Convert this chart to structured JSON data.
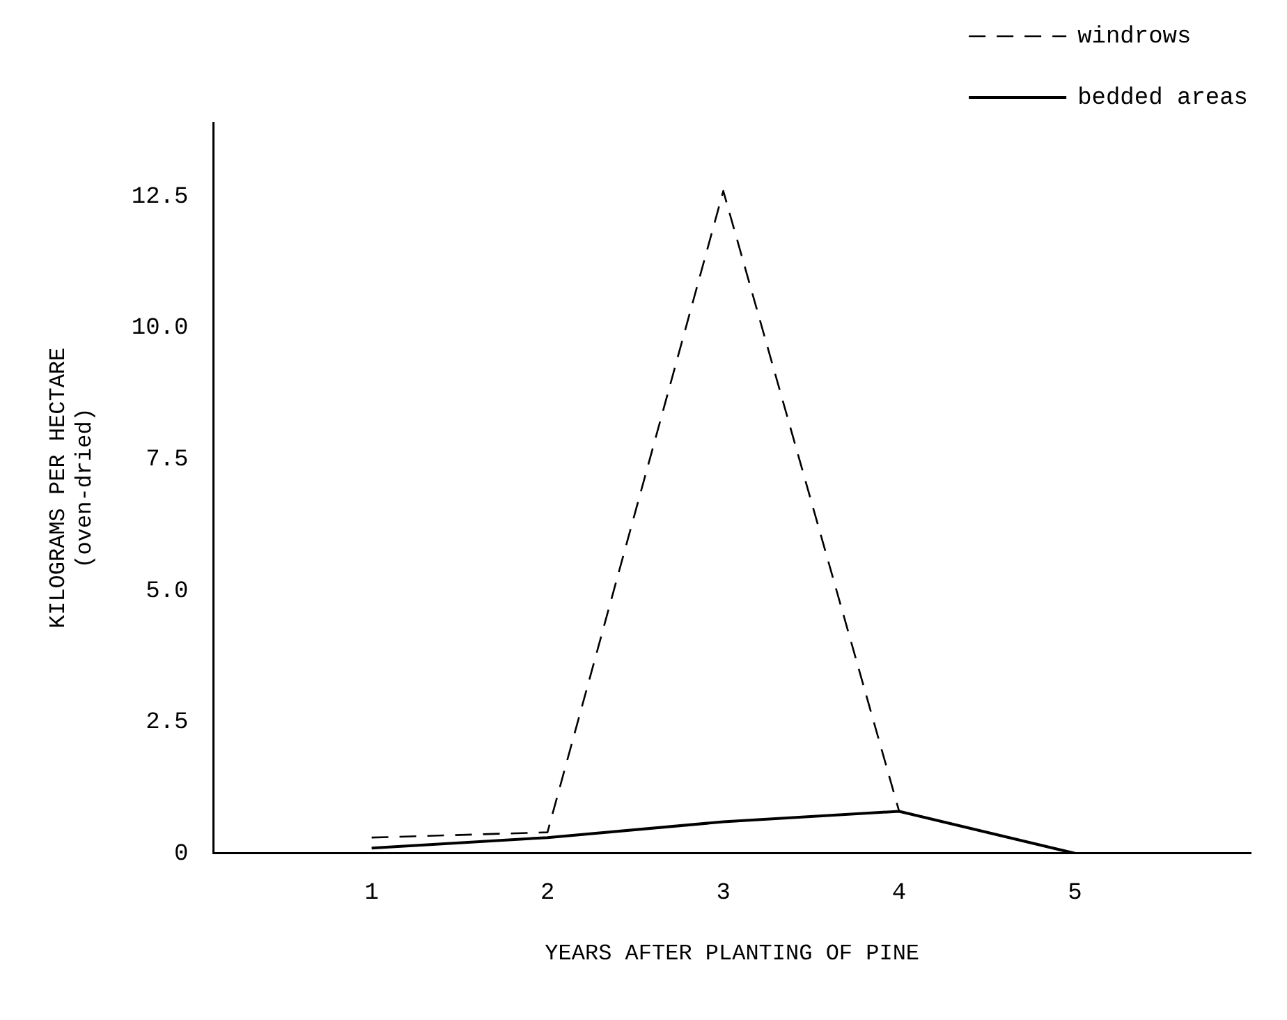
{
  "chart_data": {
    "type": "line",
    "xlabel": "YEARS AFTER PLANTING OF PINE",
    "ylabel": "KILOGRAMS PER HECTARE\n(oven-dried)",
    "x": [
      1,
      2,
      3,
      4,
      5
    ],
    "series": [
      {
        "name": "windrows",
        "color": "#000000",
        "line_style": "dashed",
        "values": [
          0.3,
          0.4,
          12.6,
          0.8,
          0
        ]
      },
      {
        "name": "bedded areas",
        "color": "#000000",
        "line_style": "solid",
        "values": [
          0.1,
          0.3,
          0.6,
          0.8,
          0
        ]
      }
    ],
    "xlim": [
      0.1,
      6
    ],
    "xticks": [
      1,
      2,
      3,
      4,
      5
    ],
    "ylim": [
      0,
      13.9
    ],
    "yticks": [
      0,
      2.5,
      {
        "value": 5,
        "label": "5.0"
      },
      7.5,
      {
        "value": 10,
        "label": "10.0"
      },
      12.5
    ],
    "grid": false,
    "legend": "top right",
    "marker": "none"
  }
}
